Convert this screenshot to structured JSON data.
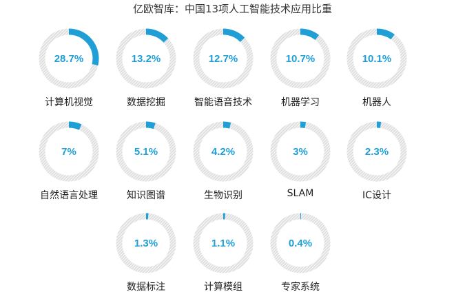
{
  "chart_data": {
    "type": "donut",
    "title": "亿欧智库：中国13项人工智能技术应用比重",
    "value_format": "percent",
    "accent_color": "#1f9fd6",
    "track_color": "#d9d9d9",
    "items": [
      {
        "name": "计算机视觉",
        "value": 28.7,
        "label": "28.7%"
      },
      {
        "name": "数据挖掘",
        "value": 13.2,
        "label": "13.2%"
      },
      {
        "name": "智能语音技术",
        "value": 12.7,
        "label": "12.7%"
      },
      {
        "name": "机器学习",
        "value": 10.7,
        "label": "10.7%"
      },
      {
        "name": "机器人",
        "value": 10.1,
        "label": "10.1%"
      },
      {
        "name": "自然语言处理",
        "value": 7,
        "label": "7%"
      },
      {
        "name": "知识图谱",
        "value": 5.1,
        "label": "5.1%"
      },
      {
        "name": "生物识别",
        "value": 4.2,
        "label": "4.2%"
      },
      {
        "name": "SLAM",
        "value": 3,
        "label": "3%"
      },
      {
        "name": "IC设计",
        "value": 2.3,
        "label": "2.3%"
      },
      {
        "name": "数据标注",
        "value": 1.3,
        "label": "1.3%"
      },
      {
        "name": "计算模组",
        "value": 1.1,
        "label": "1.1%"
      },
      {
        "name": "专家系统",
        "value": 0.4,
        "label": "0.4%"
      }
    ]
  }
}
